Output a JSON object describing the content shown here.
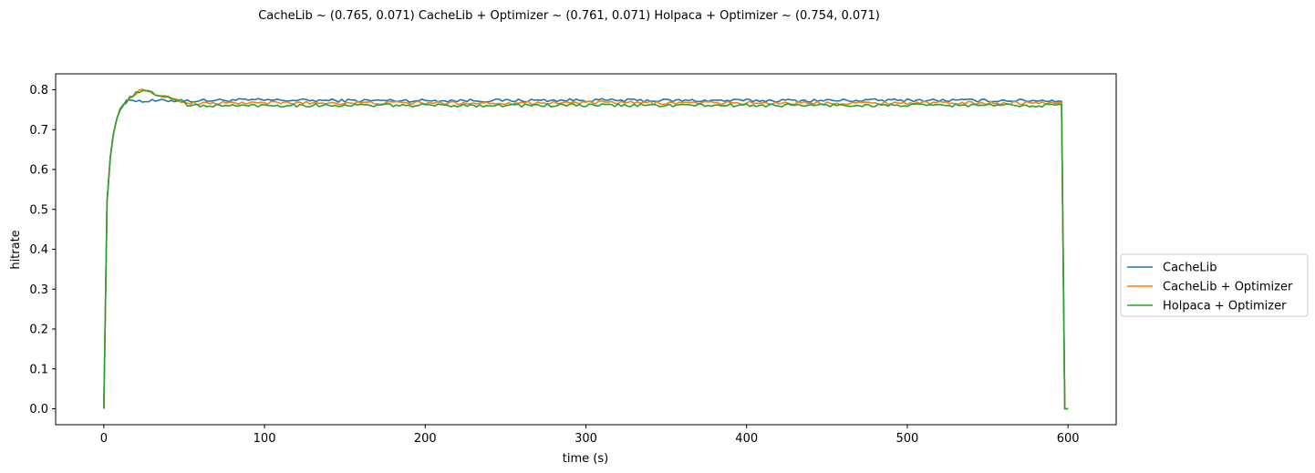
{
  "chart_data": {
    "type": "line",
    "title": "CacheLib ~ (0.765, 0.071)   CacheLib + Optimizer ~ (0.761, 0.071)   Holpaca + Optimizer ~ (0.754, 0.071)",
    "xlabel": "time (s)",
    "ylabel": "hitrate",
    "xlim": [
      -30,
      630
    ],
    "ylim": [
      -0.04,
      0.84
    ],
    "x_ticks": [
      0,
      100,
      200,
      300,
      400,
      500,
      600
    ],
    "y_ticks": [
      0.0,
      0.1,
      0.2,
      0.3,
      0.4,
      0.5,
      0.6,
      0.7,
      0.8
    ],
    "grid": false,
    "legend_position": "right, outside plot",
    "sample_step": 2,
    "series": [
      {
        "name": "CacheLib",
        "color": "#1f77b4",
        "x": [
          0,
          2,
          4,
          6,
          8,
          10,
          12,
          14,
          16,
          18,
          20,
          22,
          24,
          26,
          28,
          30,
          35,
          40,
          45,
          50,
          60,
          80,
          100,
          150,
          200,
          250,
          300,
          350,
          400,
          450,
          500,
          550,
          597,
          598,
          600
        ],
        "values": [
          0.0,
          0.52,
          0.63,
          0.69,
          0.73,
          0.75,
          0.76,
          0.77,
          0.775,
          0.776,
          0.774,
          0.772,
          0.771,
          0.771,
          0.772,
          0.772,
          0.772,
          0.773,
          0.773,
          0.772,
          0.773,
          0.774,
          0.774,
          0.773,
          0.773,
          0.773,
          0.774,
          0.773,
          0.773,
          0.773,
          0.774,
          0.773,
          0.773,
          0.0,
          0.0
        ]
      },
      {
        "name": "CacheLib + Optimizer",
        "color": "#ff7f0e",
        "x": [
          0,
          2,
          4,
          6,
          8,
          10,
          12,
          14,
          16,
          18,
          20,
          22,
          24,
          26,
          28,
          30,
          33,
          36,
          40,
          45,
          50,
          55,
          60,
          80,
          100,
          150,
          200,
          250,
          300,
          350,
          400,
          450,
          500,
          550,
          597,
          598,
          600
        ],
        "values": [
          0.0,
          0.52,
          0.63,
          0.69,
          0.73,
          0.75,
          0.76,
          0.77,
          0.78,
          0.787,
          0.792,
          0.796,
          0.798,
          0.796,
          0.795,
          0.792,
          0.787,
          0.785,
          0.781,
          0.774,
          0.77,
          0.766,
          0.766,
          0.767,
          0.767,
          0.767,
          0.767,
          0.767,
          0.768,
          0.767,
          0.767,
          0.767,
          0.767,
          0.767,
          0.767,
          0.0,
          0.0
        ]
      },
      {
        "name": "Holpaca + Optimizer",
        "color": "#2ca02c",
        "x": [
          0,
          2,
          4,
          6,
          8,
          10,
          12,
          14,
          16,
          18,
          20,
          22,
          24,
          26,
          28,
          30,
          33,
          36,
          40,
          45,
          50,
          52,
          54,
          60,
          80,
          100,
          150,
          200,
          250,
          300,
          350,
          400,
          450,
          500,
          550,
          597,
          598,
          600
        ],
        "values": [
          0.0,
          0.52,
          0.63,
          0.69,
          0.73,
          0.75,
          0.76,
          0.77,
          0.78,
          0.786,
          0.791,
          0.795,
          0.797,
          0.796,
          0.795,
          0.792,
          0.788,
          0.785,
          0.781,
          0.776,
          0.77,
          0.758,
          0.762,
          0.76,
          0.76,
          0.761,
          0.761,
          0.761,
          0.761,
          0.761,
          0.761,
          0.761,
          0.761,
          0.761,
          0.761,
          0.761,
          0.0,
          0.0
        ]
      }
    ]
  }
}
